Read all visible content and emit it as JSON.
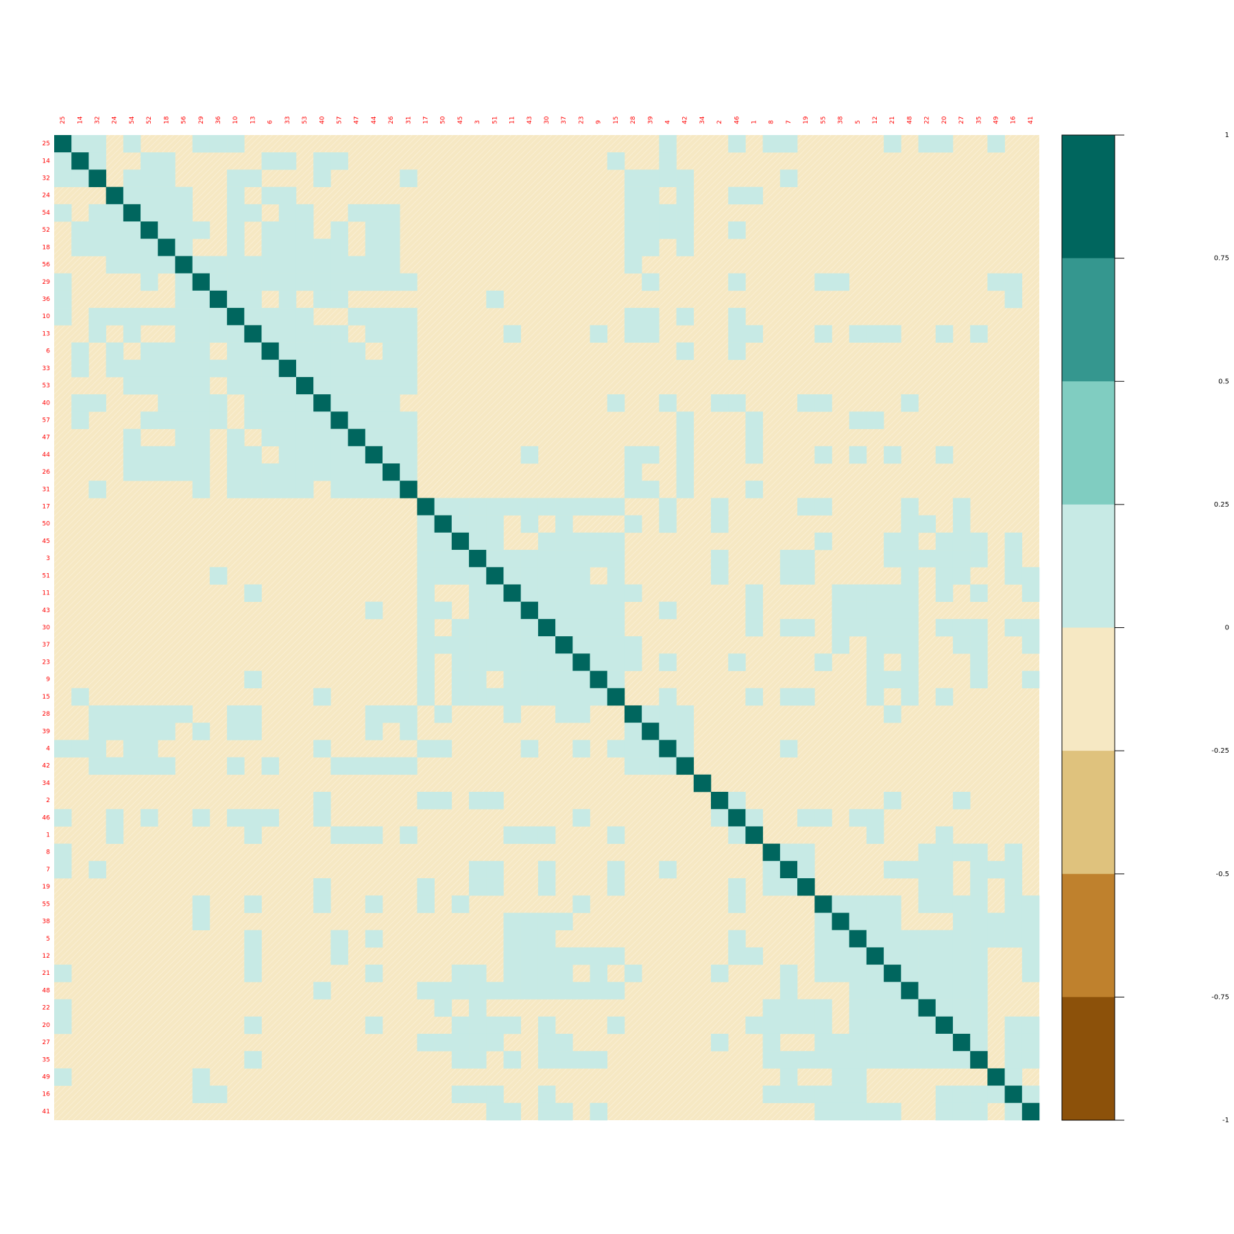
{
  "chart_data": {
    "type": "heatmap",
    "order": [
      "25",
      "14",
      "32",
      "24",
      "54",
      "52",
      "18",
      "56",
      "29",
      "36",
      "10",
      "13",
      "6",
      "33",
      "53",
      "40",
      "57",
      "47",
      "44",
      "26",
      "31",
      "17",
      "50",
      "45",
      "3",
      "51",
      "11",
      "43",
      "30",
      "37",
      "23",
      "9",
      "15",
      "28",
      "39",
      "4",
      "42",
      "34",
      "2",
      "46",
      "1",
      "8",
      "7",
      "19",
      "55",
      "38",
      "5",
      "12",
      "21",
      "48",
      "22",
      "20",
      "27",
      "35",
      "49",
      "16",
      "41"
    ],
    "matrix_rows": [
      ".##...#....###..................................##.#....",
      "#.###..............................#.......#.#...##.##..#.",
      "..........##....#.........#.....#..#.........#..#.......",
      "..###......##..#...............##..#..#...................",
      "###.#....##.#..####.....###...............................",
      "..........##.#.##...#...##.....##..###.###....................",
      "##.#.....#.##.###......#......###..#......................",
      ".##.........#..##.#.##..............................##....",
      "..#...#.#....#####.#.....##..#............................",
      "..###..##..##..###.....#.............................##...",
      "..#..###.....#.####........###..#.........................",
      "...##.#....##...##.......................................",
      "...##.#....#.#...........................................",
      "...##.#....#.#...........................................",
      "...##.#....#.#..........................................."
    ],
    "legend": {
      "ticks": [
        "1",
        "0.75",
        "0.5",
        "0.25",
        "0",
        "-0.25",
        "-0.5",
        "-0.75",
        "-1"
      ],
      "colors": [
        "#00665e",
        "#35978f",
        "#80cdc1",
        "#c7eae5",
        "#f6e8c3",
        "#dfc27d",
        "#bf812d",
        "#8c510a"
      ]
    },
    "title": "",
    "xlabel": "",
    "ylabel": "",
    "label_color": "#ff0000"
  }
}
